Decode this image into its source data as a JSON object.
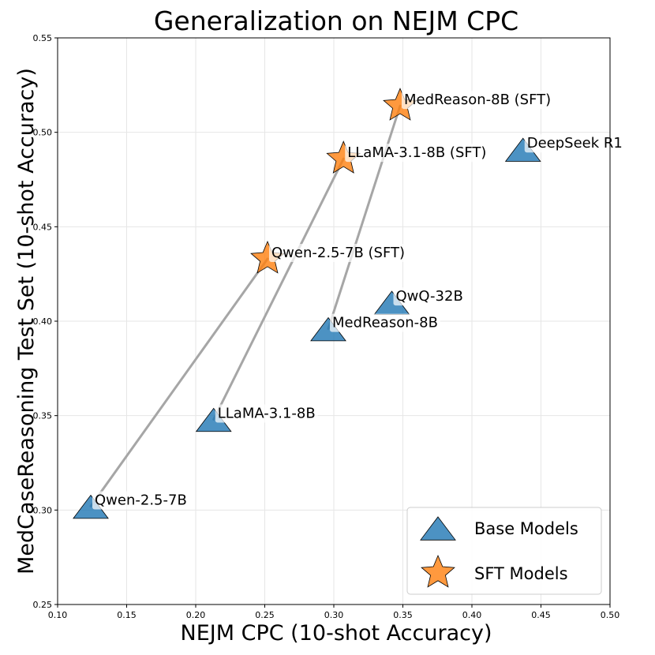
{
  "chart_data": {
    "type": "scatter",
    "title": "Generalization on NEJM CPC",
    "xlabel": "NEJM CPC (10-shot Accuracy)",
    "ylabel": "MedCaseReasoning Test Set (10-shot Accuracy)",
    "xlim": [
      0.1,
      0.5
    ],
    "ylim": [
      0.25,
      0.55
    ],
    "xticks": [
      "0.10",
      "0.15",
      "0.20",
      "0.25",
      "0.30",
      "0.35",
      "0.40",
      "0.45",
      "0.50"
    ],
    "yticks": [
      "0.25",
      "0.30",
      "0.35",
      "0.40",
      "0.45",
      "0.50",
      "0.55"
    ],
    "grid": true,
    "legend_position": "bottom-right",
    "series": [
      {
        "name": "Base Models",
        "marker": "triangle",
        "color": "#1f77b4",
        "points": [
          {
            "label": "Qwen-2.5-7B",
            "x": 0.124,
            "y": 0.302
          },
          {
            "label": "LLaMA-3.1-8B",
            "x": 0.213,
            "y": 0.348
          },
          {
            "label": "MedReason-8B",
            "x": 0.296,
            "y": 0.396
          },
          {
            "label": "QwQ-32B",
            "x": 0.342,
            "y": 0.41
          },
          {
            "label": "DeepSeek R1",
            "x": 0.437,
            "y": 0.491
          }
        ]
      },
      {
        "name": "SFT Models",
        "marker": "star",
        "color": "#ff7f0e",
        "points": [
          {
            "label": "Qwen-2.5-7B (SFT)",
            "x": 0.252,
            "y": 0.433
          },
          {
            "label": "LLaMA-3.1-8B (SFT)",
            "x": 0.307,
            "y": 0.486
          },
          {
            "label": "MedReason-8B (SFT)",
            "x": 0.348,
            "y": 0.514
          }
        ]
      }
    ],
    "connections": [
      {
        "from": "Qwen-2.5-7B",
        "to": "Qwen-2.5-7B (SFT)"
      },
      {
        "from": "LLaMA-3.1-8B",
        "to": "LLaMA-3.1-8B (SFT)"
      },
      {
        "from": "MedReason-8B",
        "to": "MedReason-8B (SFT)"
      }
    ]
  }
}
